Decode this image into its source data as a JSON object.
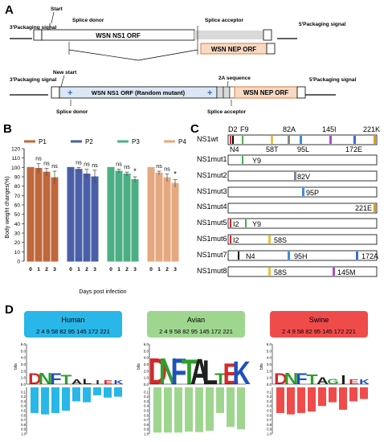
{
  "panel_a": {
    "label": "A",
    "top": {
      "packaging_left": "3'Packaging signal",
      "start": "Start",
      "splice_donor": "Splice donor",
      "orf": "WSN NS1 ORF",
      "splice_acceptor": "Splice acceptor",
      "packaging_right": "5'Packaging signal",
      "nep": "WSN NEP ORF"
    },
    "bottom": {
      "packaging_left": "3'Packaging signal",
      "new_start": "New start",
      "orf": "WSN NS1 ORF (Random mutant)",
      "splice_donor": "Splice donor",
      "sequence_2a": "2A sequence",
      "nep": "WSN NEP ORF",
      "splice_acceptor": "Splice acceptor",
      "packaging_right": "5'Packaging signal"
    },
    "colors": {
      "orf_fill": "#dbe7f5",
      "nep_fill": "#f7d9c4",
      "nep_border": "#e07b39",
      "gray": "#d9d9d9"
    }
  },
  "panel_b": {
    "label": "B",
    "ylabel": "Body weight changes(%)",
    "xlabel": "Days post infection",
    "ytick_labels": [
      "0",
      "10",
      "20",
      "30",
      "40",
      "50",
      "60",
      "70",
      "80",
      "90",
      "100",
      "110",
      "120"
    ]
  },
  "chart_data": {
    "type": "bar",
    "ylim": [
      0,
      120
    ],
    "categories": [
      "0",
      "1",
      "2",
      "3"
    ],
    "series": [
      {
        "name": "P1",
        "color": "#c0673c",
        "values": [
          100,
          99,
          95,
          89
        ],
        "errors": [
          0,
          5,
          4,
          7
        ],
        "annotations": [
          "",
          "ns",
          "ns",
          "ns"
        ]
      },
      {
        "name": "P2",
        "color": "#4a5fa8",
        "values": [
          100,
          98,
          93,
          90
        ],
        "errors": [
          0,
          2,
          5,
          7
        ],
        "annotations": [
          "",
          "ns",
          "ns",
          "ns"
        ]
      },
      {
        "name": "P3",
        "color": "#4caf84",
        "values": [
          100,
          96,
          93,
          87
        ],
        "errors": [
          0,
          2,
          2,
          3
        ],
        "annotations": [
          "",
          "ns",
          "ns",
          "*"
        ]
      },
      {
        "name": "P4",
        "color": "#e6a880",
        "values": [
          100,
          94,
          89,
          83
        ],
        "errors": [
          0,
          2,
          4,
          4
        ],
        "annotations": [
          "",
          "ns",
          "ns",
          "*"
        ]
      }
    ]
  },
  "panel_c": {
    "label": "C",
    "top_positions": [
      "D2",
      "F9",
      "82A",
      "145I",
      "221K"
    ],
    "bottom_positions": [
      "N4",
      "58T",
      "95L",
      "172E"
    ],
    "rows": [
      {
        "name": "NS1wt",
        "marks": []
      },
      {
        "name": "NS1mut1",
        "marks": [
          "Y9"
        ]
      },
      {
        "name": "NS1mut2",
        "marks": [
          "82V"
        ]
      },
      {
        "name": "NS1mut3",
        "marks": [
          "95P"
        ]
      },
      {
        "name": "NS1mut4",
        "marks": [
          "221E"
        ]
      },
      {
        "name": "NS1mut5",
        "marks": [
          "I2",
          "Y9"
        ]
      },
      {
        "name": "NS1mut6",
        "marks": [
          "I2",
          "58S"
        ]
      },
      {
        "name": "NS1mut7",
        "marks": [
          "N4",
          "95H",
          "172A"
        ]
      },
      {
        "name": "NS1mut8",
        "marks": [
          "58S",
          "145M"
        ]
      }
    ]
  },
  "panel_d": {
    "label": "D",
    "positions_label": "2 4 9 58 82 95 145 172 221",
    "bits_label": "bits",
    "yticks_top": [
      "6.0",
      "5.0",
      "4.0",
      "3.0",
      "2.0",
      "1.0",
      "0.0"
    ],
    "yticks_bottom": [
      "0.1",
      "0.2",
      "0.3",
      "0.4",
      "0.5",
      "0.6",
      "0.7",
      "0.8",
      "0.9",
      "1.0"
    ],
    "logos": [
      {
        "title": "Human",
        "header_color": "#29b6e8",
        "bar_color": "#29b6e8",
        "letters": "DNFTALIEK",
        "heights": [
          0.55,
          0.58,
          0.55,
          0.5,
          0.3,
          0.32,
          0.17,
          0.22,
          0.2
        ]
      },
      {
        "title": "Avian",
        "header_color": "#9fd68f",
        "bar_color": "#9fd68f",
        "letters": "DNFTALTEK",
        "heights": [
          0.97,
          0.97,
          0.97,
          0.95,
          0.96,
          0.93,
          0.55,
          0.85,
          0.9
        ]
      },
      {
        "title": "Swine",
        "header_color": "#ef4b4b",
        "bar_color": "#ef4b4b",
        "letters": "DNFTAGIEK",
        "heights": [
          0.55,
          0.58,
          0.55,
          0.52,
          0.4,
          0.32,
          0.48,
          0.3,
          0.25
        ]
      }
    ]
  }
}
